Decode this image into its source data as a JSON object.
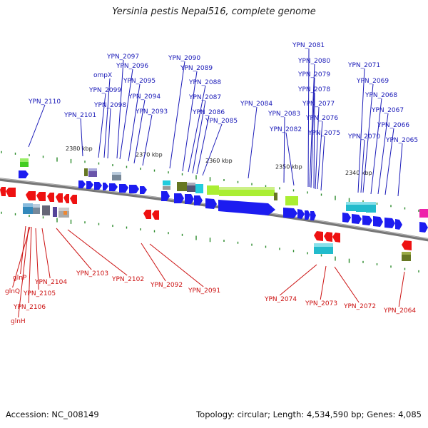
{
  "title": "Yersinia pestis Nepal516, complete genome",
  "footer": {
    "accession": "Accession: NC_008149",
    "summary": "Topology: circular; Length: 4,534,590 bp; Genes: 4,085"
  },
  "colors": {
    "forward_label": "#1a1ab8",
    "reverse_label": "#cc1111",
    "forward_gene": "#1c1cf0",
    "reverse_gene": "#ee1111",
    "backbone": "#777777",
    "tick": "#2a8a2a"
  },
  "kbp_marks": [
    {
      "label": "2380 kbp",
      "t": 0.19
    },
    {
      "label": "2370 kbp",
      "t": 0.358
    },
    {
      "label": "2360 kbp",
      "t": 0.527
    },
    {
      "label": "2350 kbp",
      "t": 0.695
    },
    {
      "label": "2340 kbp",
      "t": 0.863
    }
  ],
  "forward_labels": [
    {
      "text": "YPN_2097"
    },
    {
      "text": "YPN_2096"
    },
    {
      "text": "ompX"
    },
    {
      "text": "YPN_2095"
    },
    {
      "text": "YPN_2099"
    },
    {
      "text": "YPN_2094"
    },
    {
      "text": "YPN_2098"
    },
    {
      "text": "YPN_2093"
    },
    {
      "text": "YPN_2110"
    },
    {
      "text": "YPN_2101"
    },
    {
      "text": "YPN_2090"
    },
    {
      "text": "YPN_2089"
    },
    {
      "text": "YPN_2088"
    },
    {
      "text": "YPN_2087"
    },
    {
      "text": "YPN_2086"
    },
    {
      "text": "YPN_2085"
    },
    {
      "text": "YPN_2084"
    },
    {
      "text": "YPN_2083"
    },
    {
      "text": "YPN_2082"
    },
    {
      "text": "YPN_2081"
    },
    {
      "text": "YPN_2080"
    },
    {
      "text": "YPN_2079"
    },
    {
      "text": "YPN_2078"
    },
    {
      "text": "YPN_2077"
    },
    {
      "text": "YPN_2076"
    },
    {
      "text": "YPN_2075"
    },
    {
      "text": "YPN_2071"
    },
    {
      "text": "YPN_2069"
    },
    {
      "text": "YPN_2068"
    },
    {
      "text": "YPN_2067"
    },
    {
      "text": "YPN_2066"
    },
    {
      "text": "YPN_2070"
    },
    {
      "text": "YPN_2065"
    }
  ],
  "reverse_labels": [
    {
      "text": "glnP"
    },
    {
      "text": "glnQ"
    },
    {
      "text": "YPN_2104"
    },
    {
      "text": "YPN_2105"
    },
    {
      "text": "YPN_2106"
    },
    {
      "text": "glnH"
    },
    {
      "text": "YPN_2103"
    },
    {
      "text": "YPN_2102"
    },
    {
      "text": "YPN_2092"
    },
    {
      "text": "YPN_2091"
    },
    {
      "text": "YPN_2074"
    },
    {
      "text": "YPN_2073"
    },
    {
      "text": "YPN_2072"
    },
    {
      "text": "YPN_2064"
    }
  ]
}
